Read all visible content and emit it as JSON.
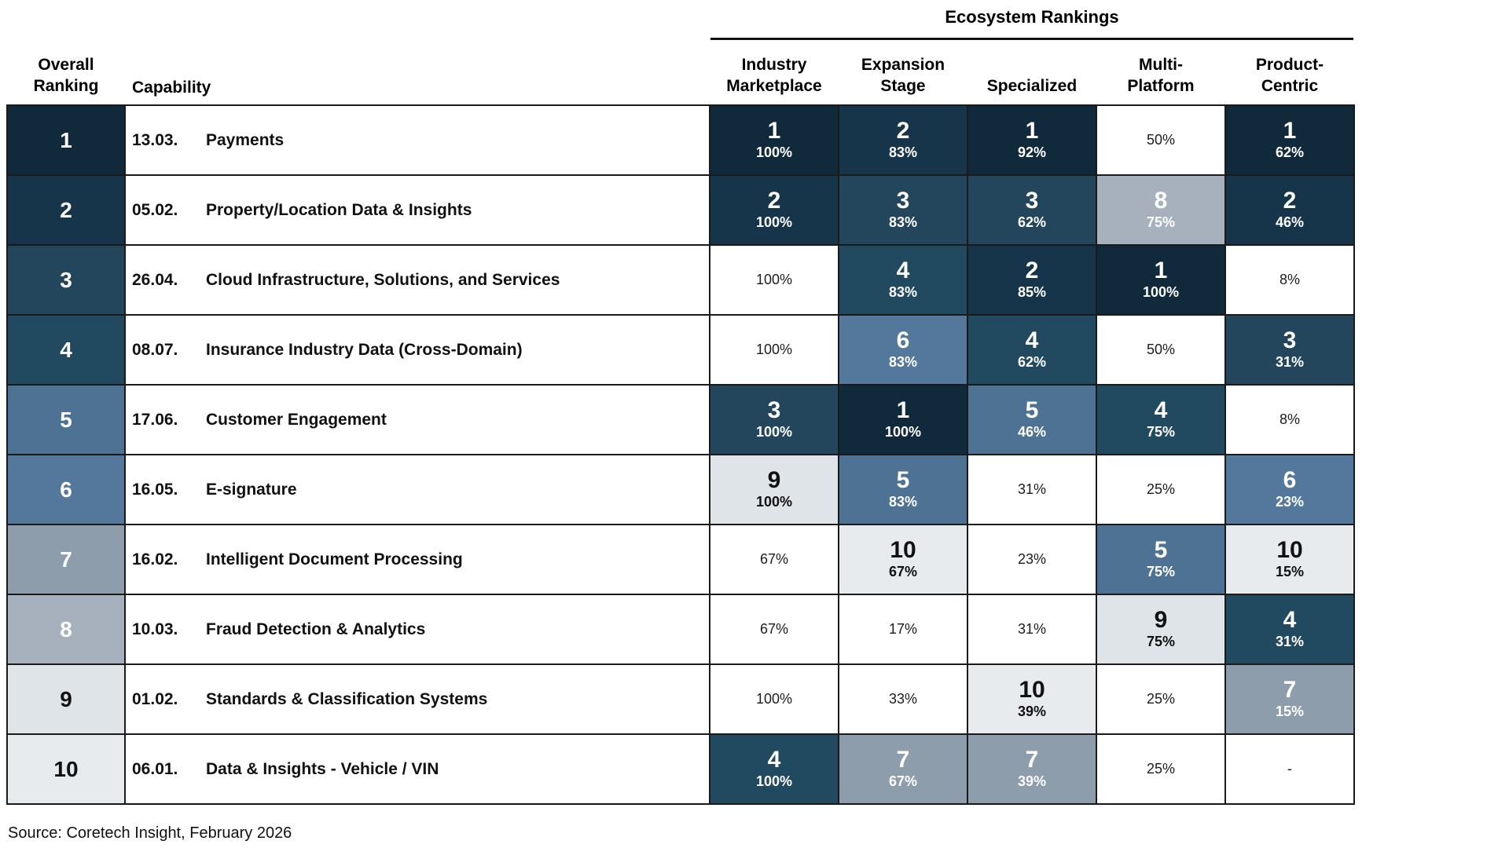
{
  "title": "Ecosystem Rankings",
  "source": "Source: Coretech Insight, February 2026",
  "columns": {
    "overall": "Overall\nRanking",
    "capability": "Capability",
    "metrics": [
      "Industry\nMarketplace",
      "Expansion\nStage",
      "Specialized",
      "Multi-\nPlatform",
      "Product-\nCentric"
    ]
  },
  "colors": {
    "grid": "#1a1a1a",
    "rank_scale": {
      "1": "#112a3b",
      "2": "#17354a",
      "3": "#24465c",
      "4": "#214a60",
      "5": "#4e7293",
      "6": "#53789b",
      "7": "#8e9dac",
      "8": "#a6b1bd",
      "9": "#dfe4e9",
      "10": "#e7ebee"
    },
    "dark_text_ranks": [
      "9",
      "10"
    ],
    "light_text": "#ffffff",
    "dark_text": "#111111",
    "unranked_bg": "#ffffff"
  },
  "chart_data": {
    "type": "heatmap",
    "title": "Ecosystem Rankings",
    "columns": [
      "Industry Marketplace",
      "Expansion Stage",
      "Specialized",
      "Multi-Platform",
      "Product-Centric"
    ],
    "rows": [
      {
        "overall_ranking": "1",
        "code": "13.03.",
        "capability": "Payments",
        "cells": [
          {
            "rank": "1",
            "share": "100%"
          },
          {
            "rank": "2",
            "share": "83%"
          },
          {
            "rank": "1",
            "share": "92%"
          },
          {
            "rank": null,
            "share": "50%"
          },
          {
            "rank": "1",
            "share": "62%"
          }
        ]
      },
      {
        "overall_ranking": "2",
        "code": "05.02.",
        "capability": "Property/Location Data & Insights",
        "cells": [
          {
            "rank": "2",
            "share": "100%"
          },
          {
            "rank": "3",
            "share": "83%"
          },
          {
            "rank": "3",
            "share": "62%"
          },
          {
            "rank": "8",
            "share": "75%"
          },
          {
            "rank": "2",
            "share": "46%"
          }
        ]
      },
      {
        "overall_ranking": "3",
        "code": "26.04.",
        "capability": "Cloud Infrastructure, Solutions, and Services",
        "cells": [
          {
            "rank": null,
            "share": "100%"
          },
          {
            "rank": "4",
            "share": "83%"
          },
          {
            "rank": "2",
            "share": "85%"
          },
          {
            "rank": "1",
            "share": "100%"
          },
          {
            "rank": null,
            "share": "8%"
          }
        ]
      },
      {
        "overall_ranking": "4",
        "code": "08.07.",
        "capability": "Insurance Industry Data (Cross-Domain)",
        "cells": [
          {
            "rank": null,
            "share": "100%"
          },
          {
            "rank": "6",
            "share": "83%"
          },
          {
            "rank": "4",
            "share": "62%"
          },
          {
            "rank": null,
            "share": "50%"
          },
          {
            "rank": "3",
            "share": "31%"
          }
        ]
      },
      {
        "overall_ranking": "5",
        "code": "17.06.",
        "capability": "Customer Engagement",
        "cells": [
          {
            "rank": "3",
            "share": "100%"
          },
          {
            "rank": "1",
            "share": "100%"
          },
          {
            "rank": "5",
            "share": "46%"
          },
          {
            "rank": "4",
            "share": "75%"
          },
          {
            "rank": null,
            "share": "8%"
          }
        ]
      },
      {
        "overall_ranking": "6",
        "code": "16.05.",
        "capability": "E-signature",
        "cells": [
          {
            "rank": "9",
            "share": "100%"
          },
          {
            "rank": "5",
            "share": "83%"
          },
          {
            "rank": null,
            "share": "31%"
          },
          {
            "rank": null,
            "share": "25%"
          },
          {
            "rank": "6",
            "share": "23%"
          }
        ]
      },
      {
        "overall_ranking": "7",
        "code": "16.02.",
        "capability": "Intelligent Document Processing",
        "cells": [
          {
            "rank": null,
            "share": "67%"
          },
          {
            "rank": "10",
            "share": "67%"
          },
          {
            "rank": null,
            "share": "23%"
          },
          {
            "rank": "5",
            "share": "75%"
          },
          {
            "rank": "10",
            "share": "15%"
          }
        ]
      },
      {
        "overall_ranking": "8",
        "code": "10.03.",
        "capability": "Fraud Detection & Analytics",
        "cells": [
          {
            "rank": null,
            "share": "67%"
          },
          {
            "rank": null,
            "share": "17%"
          },
          {
            "rank": null,
            "share": "31%"
          },
          {
            "rank": "9",
            "share": "75%"
          },
          {
            "rank": "4",
            "share": "31%"
          }
        ]
      },
      {
        "overall_ranking": "9",
        "code": "01.02.",
        "capability": "Standards & Classification Systems",
        "cells": [
          {
            "rank": null,
            "share": "100%"
          },
          {
            "rank": null,
            "share": "33%"
          },
          {
            "rank": "10",
            "share": "39%"
          },
          {
            "rank": null,
            "share": "25%"
          },
          {
            "rank": "7",
            "share": "15%"
          }
        ]
      },
      {
        "overall_ranking": "10",
        "code": "06.01.",
        "capability": "Data & Insights - Vehicle / VIN",
        "cells": [
          {
            "rank": "4",
            "share": "100%"
          },
          {
            "rank": "7",
            "share": "67%"
          },
          {
            "rank": "7",
            "share": "39%"
          },
          {
            "rank": null,
            "share": "25%"
          },
          {
            "rank": null,
            "share": "-"
          }
        ]
      }
    ]
  }
}
